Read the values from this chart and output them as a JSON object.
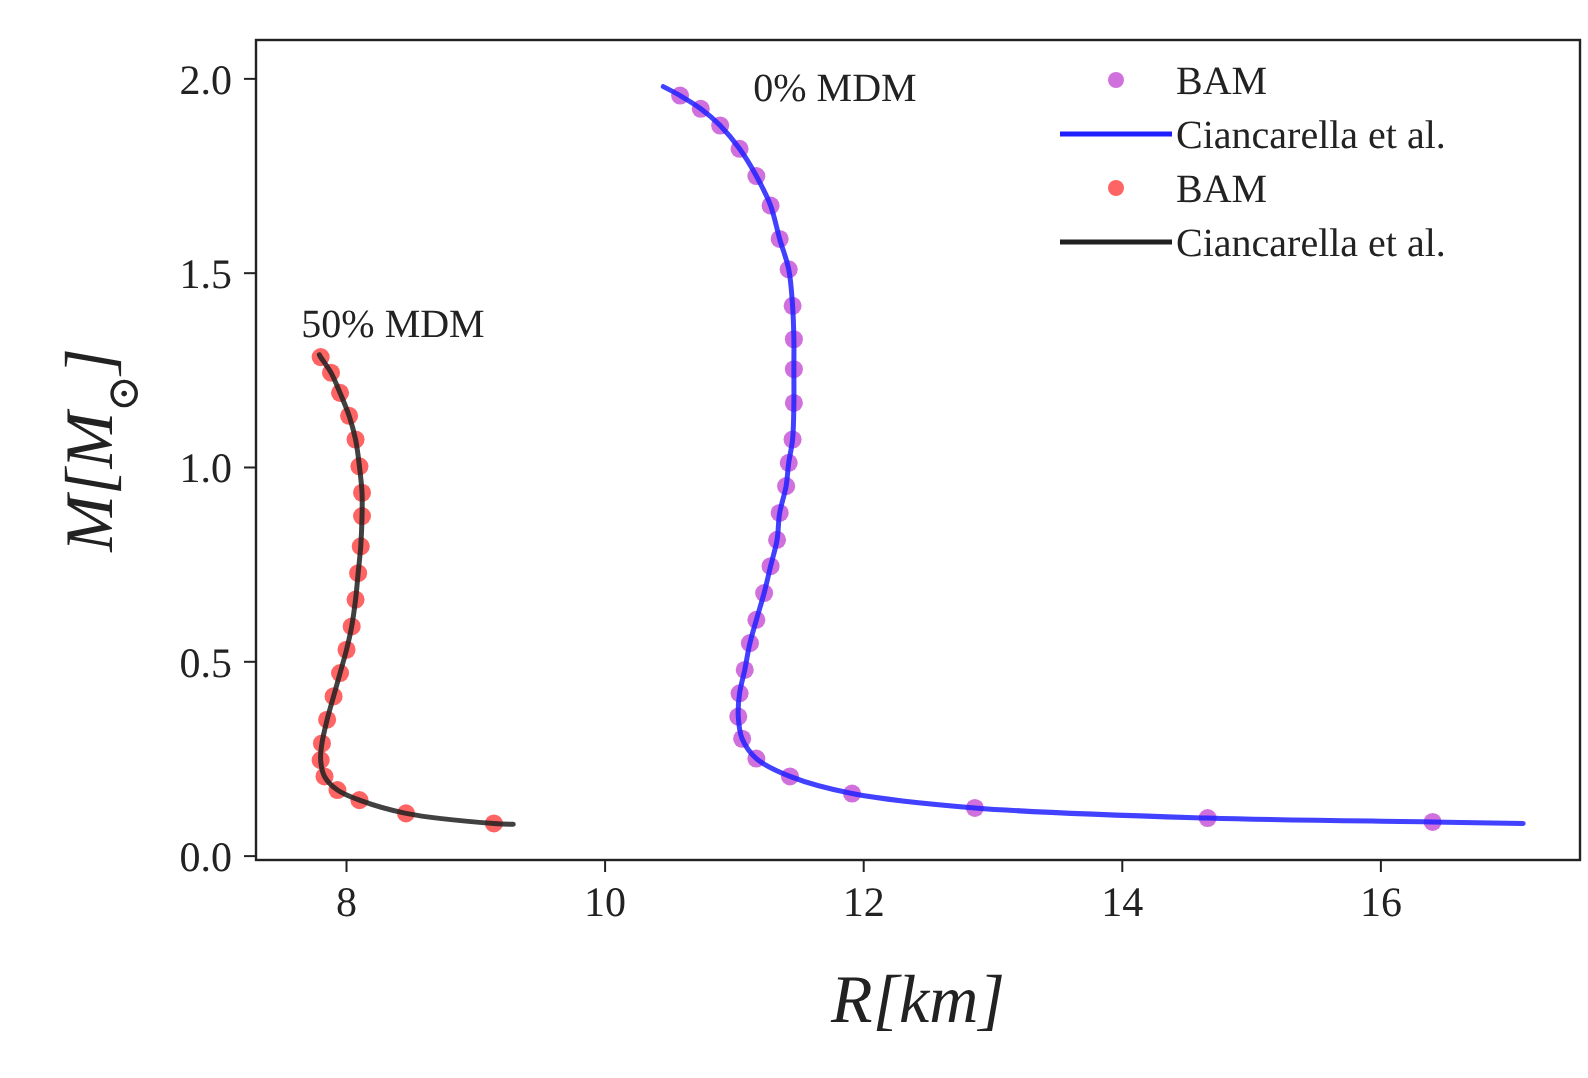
{
  "chart_data": {
    "type": "scatter",
    "xlabel": "R[km]",
    "ylabel": "M[M$_{⊙}$]",
    "xlim": [
      7.3,
      17.54
    ],
    "ylim": [
      -0.01,
      2.1
    ],
    "xticks": [
      8,
      10,
      12,
      14,
      16
    ],
    "yticks": [
      {
        "value": 0,
        "label": "0.0"
      },
      {
        "value": 0.5,
        "label": "0.5"
      },
      {
        "value": 1,
        "label": "1.0"
      },
      {
        "value": 1.5,
        "label": "1.5"
      },
      {
        "value": 2,
        "label": "2.0"
      }
    ],
    "legend": "top right",
    "grid": false,
    "marker": "circle",
    "annotations": [
      "0% MDM",
      "50% MDM"
    ],
    "series": [
      {
        "name": "BAM",
        "color": "#c040d0",
        "x": [
          10.58,
          10.74,
          10.89,
          11.04,
          11.17,
          11.28,
          11.35,
          11.42,
          11.45,
          11.46,
          11.46,
          11.46,
          11.45,
          11.42,
          11.4,
          11.35,
          11.33,
          11.28,
          11.23,
          11.17,
          11.12,
          11.08,
          11.04,
          11.03,
          11.06,
          11.17,
          11.43,
          11.91,
          12.86,
          14.66,
          16.4
        ],
        "values": [
          1.957,
          1.923,
          1.88,
          1.82,
          1.75,
          1.674,
          1.588,
          1.51,
          1.416,
          1.33,
          1.253,
          1.166,
          1.072,
          1.012,
          0.952,
          0.883,
          0.814,
          0.746,
          0.677,
          0.608,
          0.548,
          0.479,
          0.419,
          0.359,
          0.302,
          0.251,
          0.205,
          0.161,
          0.124,
          0.098,
          0.088
        ]
      },
      {
        "name": "Ciancarella et al.",
        "type": "line",
        "marker": "none",
        "color": "#2020ff",
        "x": [
          10.45,
          10.58,
          10.74,
          10.89,
          11.04,
          11.17,
          11.28,
          11.35,
          11.42,
          11.45,
          11.46,
          11.46,
          11.46,
          11.45,
          11.42,
          11.4,
          11.35,
          11.33,
          11.28,
          11.23,
          11.17,
          11.12,
          11.08,
          11.04,
          11.03,
          11.06,
          11.17,
          11.43,
          11.91,
          12.86,
          14.66,
          16.4,
          17.1
        ],
        "values": [
          1.98,
          1.957,
          1.923,
          1.88,
          1.82,
          1.75,
          1.674,
          1.588,
          1.51,
          1.416,
          1.33,
          1.253,
          1.166,
          1.072,
          1.012,
          0.952,
          0.883,
          0.814,
          0.746,
          0.677,
          0.608,
          0.548,
          0.479,
          0.419,
          0.359,
          0.302,
          0.251,
          0.205,
          0.161,
          0.124,
          0.098,
          0.088,
          0.084
        ]
      },
      {
        "name": "BAM",
        "color": "#ff3030",
        "x": [
          7.8,
          7.88,
          7.95,
          8.02,
          8.07,
          8.1,
          8.12,
          8.12,
          8.11,
          8.09,
          8.07,
          8.04,
          8.0,
          7.95,
          7.9,
          7.85,
          7.81,
          7.8,
          7.83,
          7.93,
          8.1,
          8.46,
          9.14
        ],
        "values": [
          1.284,
          1.244,
          1.192,
          1.133,
          1.072,
          1.003,
          0.935,
          0.875,
          0.797,
          0.728,
          0.66,
          0.591,
          0.531,
          0.471,
          0.411,
          0.351,
          0.29,
          0.247,
          0.205,
          0.17,
          0.144,
          0.11,
          0.084
        ]
      },
      {
        "name": "Ciancarella et al.",
        "type": "line",
        "marker": "none",
        "color": "#202020",
        "x": [
          7.79,
          7.8,
          7.88,
          7.95,
          8.02,
          8.07,
          8.1,
          8.12,
          8.12,
          8.11,
          8.09,
          8.07,
          8.04,
          8.0,
          7.95,
          7.9,
          7.85,
          7.81,
          7.8,
          7.83,
          7.93,
          8.1,
          8.46,
          9.14,
          9.29
        ],
        "values": [
          1.29,
          1.284,
          1.244,
          1.192,
          1.133,
          1.072,
          1.003,
          0.935,
          0.875,
          0.797,
          0.728,
          0.66,
          0.591,
          0.531,
          0.471,
          0.411,
          0.351,
          0.29,
          0.247,
          0.205,
          0.17,
          0.144,
          0.11,
          0.084,
          0.082
        ]
      }
    ]
  }
}
